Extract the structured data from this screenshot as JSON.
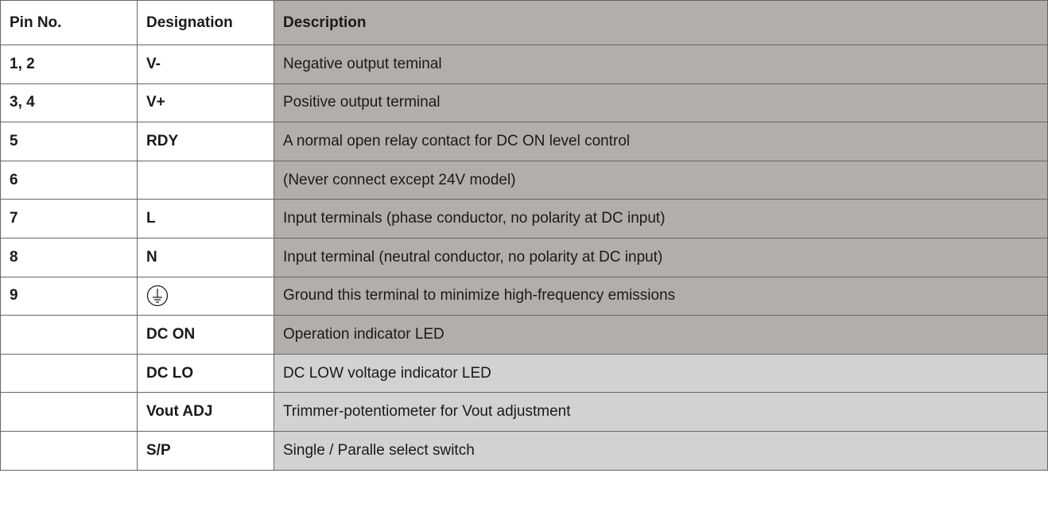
{
  "table": {
    "header": [
      "Pin No.",
      "Designation",
      "Description"
    ],
    "rows": [
      {
        "pin": "1, 2",
        "designation": "V-",
        "description": "Negative output teminal"
      },
      {
        "pin": "3, 4",
        "designation": "V+",
        "description": "Positive output terminal"
      },
      {
        "pin": "5",
        "designation": "RDY",
        "description": "A normal open relay contact for DC ON level control"
      },
      {
        "pin": "6",
        "description": "(Never connect except 24V model)"
      },
      {
        "pin": "7",
        "designation": "L",
        "description": "Input terminals (phase conductor, no polarity at DC input)"
      },
      {
        "pin": "8",
        "designation": "N",
        "description": "Input terminal (neutral conductor, no polarity at DC input)"
      },
      {
        "pin": "9",
        "description": "Ground this terminal to minimize high-frequency emissions"
      },
      {
        "designation": "DC ON",
        "description": "Operation indicator LED"
      },
      {
        "designation": "DC LO",
        "description": "DC LOW voltage indicator LED"
      },
      {
        "designation": "Vout ADJ",
        "description": "Trimmer-potentiometer for Vout adjustment"
      },
      {
        "designation": "S/P",
        "description": "Single / Paralle select switch"
      }
    ]
  }
}
